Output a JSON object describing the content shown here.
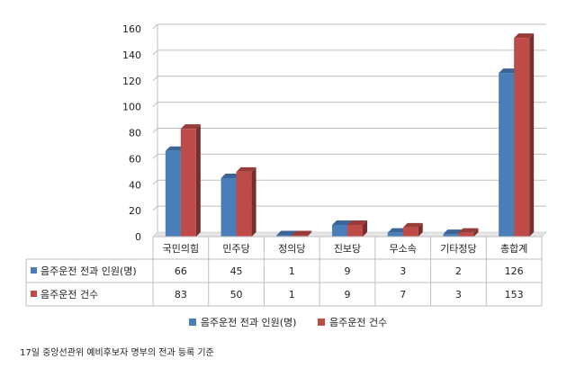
{
  "chart_data": {
    "type": "bar",
    "categories": [
      "국민의힘",
      "민주당",
      "정의당",
      "진보당",
      "무소속",
      "기타정당",
      "총합계"
    ],
    "series": [
      {
        "name": "음주운전 전과 인원(명)",
        "color": "#4a7ebb",
        "values": [
          66,
          45,
          1,
          9,
          3,
          2,
          126
        ]
      },
      {
        "name": "음주운전 건수",
        "color": "#be4b48",
        "values": [
          83,
          50,
          1,
          9,
          7,
          3,
          153
        ]
      }
    ],
    "yticks": [
      0,
      20,
      40,
      60,
      80,
      100,
      120,
      140,
      160
    ],
    "ylim": [
      0,
      160
    ],
    "grid": true,
    "data_table": true,
    "legend_position": "bottom"
  },
  "legend": {
    "series1_label": "음주운전 전과 인원(명)",
    "series2_label": "음주운전 건수"
  },
  "footnote": "17일 중앙선관위 예비후보자 명부의 전과 등록 기준"
}
